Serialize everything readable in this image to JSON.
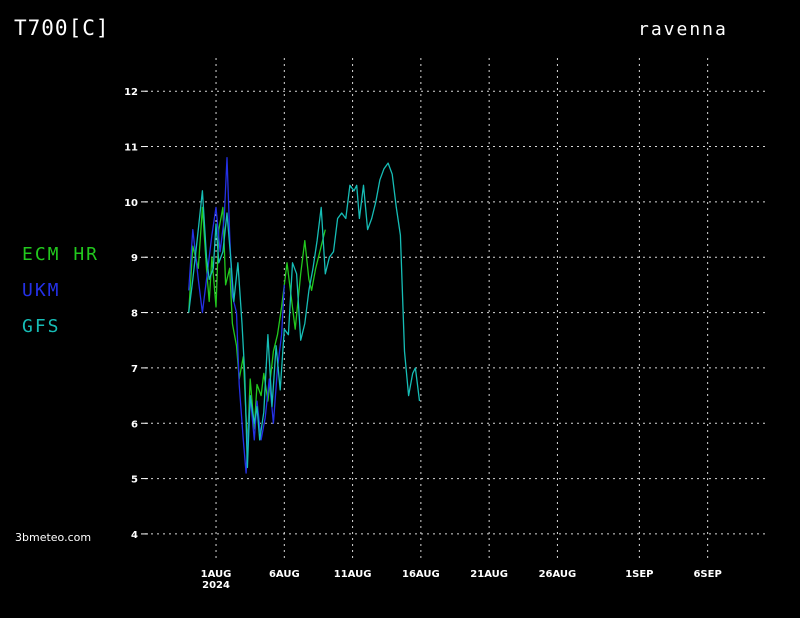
{
  "header": {
    "title": "T700[C]",
    "location": "ravenna",
    "credit": "3bmeteo.com"
  },
  "colors": {
    "ecm": "#22c81e",
    "ukm": "#2431e6",
    "gfs": "#16bdb6",
    "grid": "#d8d8d8",
    "text": "#ffffff"
  },
  "chart_data": {
    "type": "line",
    "title": "T700[C]",
    "ylabel": "",
    "xlabel": "",
    "ylim": [
      3.8,
      12.6
    ],
    "xlim": [
      -6.3,
      40.2
    ],
    "x_unit": "days relative to 1 Aug 2024",
    "grid": true,
    "legend_position": "left",
    "y_ticks": [
      4,
      5,
      6,
      7,
      8,
      9,
      10,
      11,
      12
    ],
    "x_ticks": [
      {
        "x": 0,
        "label": "1AUG",
        "sublabel": "2024"
      },
      {
        "x": 5,
        "label": "6AUG"
      },
      {
        "x": 10,
        "label": "11AUG"
      },
      {
        "x": 15,
        "label": "16AUG"
      },
      {
        "x": 20,
        "label": "21AUG"
      },
      {
        "x": 25,
        "label": "26AUG"
      },
      {
        "x": 31,
        "label": "1SEP"
      },
      {
        "x": 36,
        "label": "6SEP"
      }
    ],
    "series": [
      {
        "name": "ECM HR",
        "key": "ecm",
        "points": [
          [
            -2.0,
            8.0
          ],
          [
            -1.7,
            9.2
          ],
          [
            -1.3,
            8.8
          ],
          [
            -1.0,
            9.9
          ],
          [
            -0.7,
            8.8
          ],
          [
            -0.5,
            8.2
          ],
          [
            -0.3,
            9.0
          ],
          [
            0.0,
            8.1
          ],
          [
            0.2,
            9.5
          ],
          [
            0.5,
            9.9
          ],
          [
            0.7,
            8.5
          ],
          [
            1.0,
            8.8
          ],
          [
            1.2,
            7.8
          ],
          [
            1.5,
            7.4
          ],
          [
            1.7,
            6.8
          ],
          [
            2.0,
            7.2
          ],
          [
            2.3,
            5.6
          ],
          [
            2.5,
            6.8
          ],
          [
            2.8,
            5.9
          ],
          [
            3.0,
            6.7
          ],
          [
            3.3,
            6.5
          ],
          [
            3.5,
            6.9
          ],
          [
            3.8,
            6.4
          ],
          [
            4.2,
            7.3
          ],
          [
            4.5,
            7.6
          ],
          [
            4.8,
            8.1
          ],
          [
            5.2,
            8.9
          ],
          [
            5.5,
            8.3
          ],
          [
            5.8,
            7.7
          ],
          [
            6.2,
            8.7
          ],
          [
            6.5,
            9.3
          ],
          [
            6.8,
            8.6
          ],
          [
            7.0,
            8.4
          ],
          [
            7.3,
            8.8
          ],
          [
            7.7,
            9.2
          ],
          [
            8.0,
            9.5
          ]
        ]
      },
      {
        "name": "UKM",
        "key": "ukm",
        "points": [
          [
            -2.0,
            8.4
          ],
          [
            -1.7,
            9.5
          ],
          [
            -1.3,
            8.6
          ],
          [
            -1.0,
            8.0
          ],
          [
            -0.7,
            8.6
          ],
          [
            -0.3,
            9.4
          ],
          [
            0.0,
            9.9
          ],
          [
            0.3,
            9.1
          ],
          [
            0.6,
            9.7
          ],
          [
            0.8,
            10.8
          ],
          [
            1.0,
            9.4
          ],
          [
            1.2,
            8.3
          ],
          [
            1.5,
            8.0
          ],
          [
            1.7,
            6.7
          ],
          [
            2.0,
            5.7
          ],
          [
            2.2,
            5.1
          ],
          [
            2.5,
            6.5
          ],
          [
            2.8,
            5.7
          ],
          [
            3.0,
            6.4
          ],
          [
            3.3,
            5.7
          ],
          [
            3.6,
            6.1
          ],
          [
            3.9,
            6.8
          ],
          [
            4.2,
            6.0
          ],
          [
            4.5,
            7.0
          ],
          [
            4.8,
            7.6
          ],
          [
            5.0,
            8.5
          ]
        ]
      },
      {
        "name": "GFS",
        "key": "gfs",
        "points": [
          [
            -2.0,
            8.0
          ],
          [
            -1.7,
            8.6
          ],
          [
            -1.3,
            9.5
          ],
          [
            -1.0,
            10.2
          ],
          [
            -0.7,
            9.0
          ],
          [
            -0.5,
            8.6
          ],
          [
            -0.2,
            8.8
          ],
          [
            0.0,
            9.6
          ],
          [
            0.2,
            8.9
          ],
          [
            0.5,
            9.1
          ],
          [
            0.8,
            9.8
          ],
          [
            1.1,
            8.9
          ],
          [
            1.3,
            8.2
          ],
          [
            1.6,
            8.9
          ],
          [
            1.9,
            7.8
          ],
          [
            2.1,
            6.9
          ],
          [
            2.3,
            5.2
          ],
          [
            2.5,
            6.5
          ],
          [
            2.8,
            6.0
          ],
          [
            3.0,
            6.3
          ],
          [
            3.2,
            5.7
          ],
          [
            3.5,
            6.2
          ],
          [
            3.8,
            7.6
          ],
          [
            4.1,
            6.3
          ],
          [
            4.4,
            7.4
          ],
          [
            4.7,
            6.6
          ],
          [
            5.0,
            7.7
          ],
          [
            5.3,
            7.6
          ],
          [
            5.6,
            8.9
          ],
          [
            5.9,
            8.7
          ],
          [
            6.2,
            7.5
          ],
          [
            6.5,
            7.8
          ],
          [
            6.8,
            8.4
          ],
          [
            7.1,
            8.8
          ],
          [
            7.4,
            9.3
          ],
          [
            7.7,
            9.9
          ],
          [
            8.0,
            8.7
          ],
          [
            8.3,
            9.0
          ],
          [
            8.6,
            9.1
          ],
          [
            8.9,
            9.7
          ],
          [
            9.2,
            9.8
          ],
          [
            9.5,
            9.7
          ],
          [
            9.8,
            10.3
          ],
          [
            10.1,
            10.2
          ],
          [
            10.3,
            10.3
          ],
          [
            10.5,
            9.7
          ],
          [
            10.8,
            10.3
          ],
          [
            11.1,
            9.5
          ],
          [
            11.4,
            9.7
          ],
          [
            11.7,
            10.0
          ],
          [
            12.0,
            10.4
          ],
          [
            12.3,
            10.6
          ],
          [
            12.6,
            10.7
          ],
          [
            12.9,
            10.5
          ],
          [
            13.2,
            9.9
          ],
          [
            13.5,
            9.4
          ],
          [
            13.8,
            7.3
          ],
          [
            14.1,
            6.5
          ],
          [
            14.4,
            6.9
          ],
          [
            14.6,
            7.0
          ],
          [
            14.9,
            6.4
          ]
        ]
      }
    ]
  }
}
